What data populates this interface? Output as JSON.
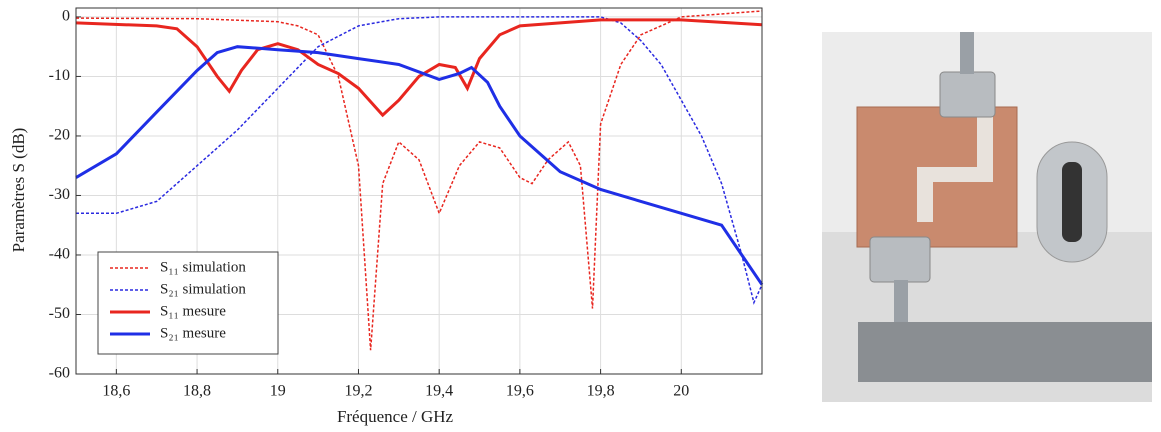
{
  "chart_data": {
    "type": "line",
    "xlabel": "Fréquence / GHz",
    "ylabel": "Paramètres S (dB)",
    "xlim": [
      18.5,
      20.2
    ],
    "ylim": [
      -60,
      1.5
    ],
    "xticks": [
      {
        "value": 18.6,
        "label": "18,6"
      },
      {
        "value": 18.8,
        "label": "18,8"
      },
      19,
      {
        "value": 19.2,
        "label": "19,2"
      },
      {
        "value": 19.4,
        "label": "19,4"
      },
      {
        "value": 19.6,
        "label": "19,6"
      },
      {
        "value": 19.8,
        "label": "19,8"
      },
      20
    ],
    "yticks": [
      0,
      -10,
      -20,
      -30,
      -40,
      -50,
      -60
    ],
    "grid": true,
    "legend": "lower left",
    "series": [
      {
        "name": "S₁₁ simulation",
        "color": "#e8261f",
        "dashed": true,
        "x": [
          18.5,
          18.8,
          19.0,
          19.05,
          19.1,
          19.15,
          19.2,
          19.23,
          19.26,
          19.3,
          19.35,
          19.4,
          19.45,
          19.5,
          19.55,
          19.6,
          19.63,
          19.67,
          19.72,
          19.75,
          19.78,
          19.8,
          19.85,
          19.9,
          20.0,
          20.2
        ],
        "values": [
          -0.2,
          -0.3,
          -0.8,
          -1.5,
          -3,
          -10,
          -25,
          -56,
          -28,
          -21,
          -24,
          -33,
          -25,
          -21,
          -22,
          -27,
          -28,
          -24,
          -21,
          -25,
          -49,
          -18,
          -8,
          -3,
          0,
          1
        ]
      },
      {
        "name": "S₂₁ simulation",
        "color": "#2a2ae0",
        "dashed": true,
        "x": [
          18.5,
          18.6,
          18.7,
          18.8,
          18.9,
          19.0,
          19.1,
          19.2,
          19.3,
          19.4,
          19.8,
          19.85,
          19.9,
          19.95,
          20.0,
          20.05,
          20.1,
          20.15,
          20.18,
          20.2
        ],
        "values": [
          -33,
          -33,
          -31,
          -25,
          -19,
          -12,
          -5,
          -1.5,
          -0.3,
          0,
          0,
          -1,
          -4,
          -8,
          -14,
          -20,
          -28,
          -40,
          -48,
          -45
        ]
      },
      {
        "name": "S₁₁ mesure",
        "color": "#e8261f",
        "dashed": false,
        "x": [
          18.5,
          18.7,
          18.75,
          18.8,
          18.85,
          18.88,
          18.91,
          18.95,
          19.0,
          19.05,
          19.1,
          19.15,
          19.2,
          19.26,
          19.3,
          19.35,
          19.4,
          19.44,
          19.47,
          19.5,
          19.55,
          19.6,
          19.8,
          20.0,
          20.2
        ],
        "values": [
          -1,
          -1.5,
          -2,
          -5,
          -10,
          -12.5,
          -9,
          -5.5,
          -4.5,
          -5.5,
          -8,
          -9.5,
          -12,
          -16.5,
          -14,
          -10,
          -8,
          -8.5,
          -12,
          -7,
          -3,
          -1.5,
          -0.5,
          -0.5,
          -1.3
        ]
      },
      {
        "name": "S₂₁ mesure",
        "color": "#1f2fe6",
        "dashed": false,
        "x": [
          18.5,
          18.6,
          18.7,
          18.8,
          18.85,
          18.9,
          19.0,
          19.1,
          19.2,
          19.3,
          19.4,
          19.45,
          19.48,
          19.52,
          19.55,
          19.6,
          19.7,
          19.8,
          19.9,
          20.0,
          20.1,
          20.15,
          20.2
        ],
        "values": [
          -27,
          -23,
          -16,
          -9,
          -6,
          -5,
          -5.5,
          -6,
          -7,
          -8,
          -10.5,
          -9.5,
          -8.5,
          -11,
          -15,
          -20,
          -26,
          -29,
          -31,
          -33,
          -35,
          -40,
          -45
        ]
      }
    ]
  }
}
